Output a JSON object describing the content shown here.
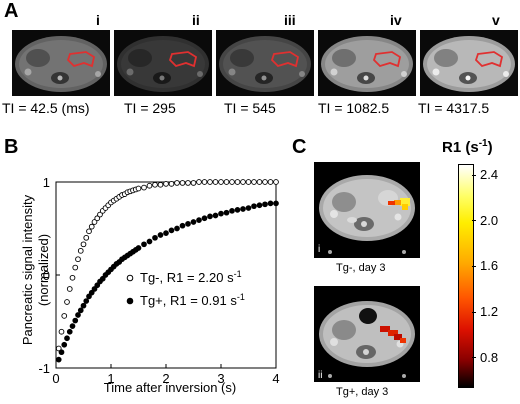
{
  "panels": {
    "a": {
      "letter": "A",
      "roman": [
        "i",
        "ii",
        "iii",
        "iv",
        "v"
      ],
      "ti_labels": [
        "TI = 42.5 (ms)",
        "TI = 295",
        "TI = 545",
        "TI = 1082.5",
        "TI = 4317.5"
      ],
      "brightness": [
        0.45,
        0.22,
        0.32,
        0.62,
        0.72
      ],
      "roi_color": "#e03030"
    },
    "b": {
      "letter": "B",
      "legend": [
        "Tg-, R1 = 2.20 s",
        "Tg+, R1 = 0.91 s"
      ],
      "legend_sup": "-1"
    },
    "c": {
      "letter": "C",
      "cbar_title": "R1 (s",
      "cbar_title_sup": "-1",
      "cbar_title_close": ")",
      "images": [
        {
          "roman": "i",
          "caption": "Tg-, day 3"
        },
        {
          "roman": "ii",
          "caption": "Tg+, day 3"
        }
      ],
      "cbar_ticks": [
        "2.4",
        "2.0",
        "1.6",
        "1.2",
        "0.8"
      ],
      "cbar_values": [
        2.4,
        2.0,
        1.6,
        1.2,
        0.8
      ],
      "cbar_range": [
        0.55,
        2.5
      ]
    }
  },
  "chart_data": {
    "type": "scatter",
    "xlabel": "Time after inversion (s)",
    "ylabel": "Pancreatic signal intensity (normalized)",
    "ylabel_lines": [
      "Pancreatic signal intensity",
      "(normalized)"
    ],
    "xlim": [
      0,
      4
    ],
    "ylim": [
      -1,
      1
    ],
    "xticks": [
      "0",
      "1",
      "2",
      "3",
      "4"
    ],
    "yticks": [
      "1",
      "0",
      "-1"
    ],
    "xtick_values": [
      0,
      1,
      2,
      3,
      4
    ],
    "ytick_values": [
      1,
      0,
      -1
    ],
    "grid": false,
    "legend_position": "bottom-right",
    "series": [
      {
        "name": "Tg-, R1 = 2.20 s-1",
        "marker": "open-circle",
        "r1": 2.2,
        "x": [
          0.05,
          0.1,
          0.15,
          0.2,
          0.25,
          0.3,
          0.35,
          0.4,
          0.45,
          0.5,
          0.55,
          0.6,
          0.65,
          0.7,
          0.75,
          0.8,
          0.85,
          0.9,
          0.95,
          1.0,
          1.05,
          1.1,
          1.15,
          1.2,
          1.25,
          1.3,
          1.35,
          1.4,
          1.45,
          1.5,
          1.6,
          1.7,
          1.8,
          1.9,
          2.0,
          2.1,
          2.2,
          2.3,
          2.4,
          2.5,
          2.6,
          2.7,
          2.8,
          2.9,
          3.0,
          3.1,
          3.2,
          3.3,
          3.4,
          3.5,
          3.6,
          3.7,
          3.8,
          3.9,
          4.0
        ],
        "y": [
          -0.79,
          -0.61,
          -0.44,
          -0.29,
          -0.15,
          -0.03,
          0.08,
          0.17,
          0.26,
          0.33,
          0.4,
          0.47,
          0.52,
          0.57,
          0.61,
          0.65,
          0.69,
          0.72,
          0.75,
          0.78,
          0.8,
          0.82,
          0.84,
          0.86,
          0.87,
          0.89,
          0.9,
          0.91,
          0.92,
          0.93,
          0.94,
          0.96,
          0.97,
          0.97,
          0.98,
          0.98,
          0.99,
          0.99,
          0.99,
          0.99,
          1.0,
          1.0,
          1.0,
          1.0,
          1.0,
          1.0,
          1.0,
          1.0,
          1.0,
          1.0,
          1.0,
          1.0,
          1.0,
          1.0,
          1.0
        ]
      },
      {
        "name": "Tg+, R1 = 0.91 s-1",
        "marker": "filled-circle",
        "r1": 0.91,
        "x": [
          0.05,
          0.1,
          0.15,
          0.2,
          0.25,
          0.3,
          0.35,
          0.4,
          0.45,
          0.5,
          0.55,
          0.6,
          0.65,
          0.7,
          0.75,
          0.8,
          0.85,
          0.9,
          0.95,
          1.0,
          1.05,
          1.1,
          1.15,
          1.2,
          1.25,
          1.3,
          1.35,
          1.4,
          1.45,
          1.5,
          1.6,
          1.7,
          1.8,
          1.9,
          2.0,
          2.1,
          2.2,
          2.3,
          2.4,
          2.5,
          2.6,
          2.7,
          2.8,
          2.9,
          3.0,
          3.1,
          3.2,
          3.3,
          3.4,
          3.5,
          3.6,
          3.7,
          3.8,
          3.9,
          4.0
        ],
        "y": [
          -0.91,
          -0.83,
          -0.75,
          -0.68,
          -0.61,
          -0.55,
          -0.49,
          -0.43,
          -0.38,
          -0.33,
          -0.28,
          -0.23,
          -0.19,
          -0.15,
          -0.11,
          -0.07,
          -0.04,
          0.0,
          0.03,
          0.06,
          0.09,
          0.12,
          0.14,
          0.17,
          0.19,
          0.21,
          0.23,
          0.25,
          0.27,
          0.29,
          0.33,
          0.36,
          0.4,
          0.43,
          0.45,
          0.48,
          0.5,
          0.53,
          0.55,
          0.57,
          0.59,
          0.61,
          0.63,
          0.64,
          0.66,
          0.67,
          0.69,
          0.7,
          0.71,
          0.72,
          0.74,
          0.75,
          0.76,
          0.77,
          0.77
        ]
      }
    ]
  }
}
